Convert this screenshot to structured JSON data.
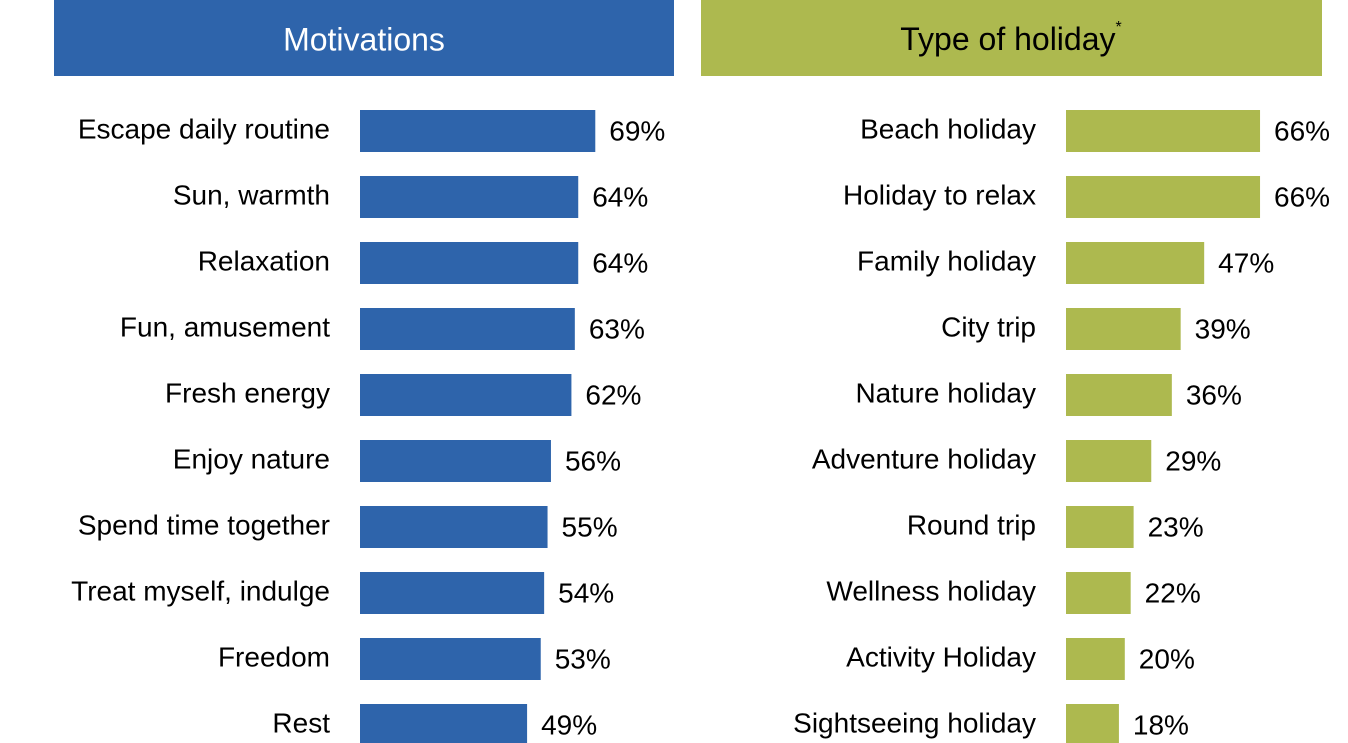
{
  "chart_data": [
    {
      "type": "bar",
      "orientation": "horizontal",
      "title": "Motivations",
      "color": "#2e64ab",
      "categories": [
        "Escape daily routine",
        "Sun, warmth",
        "Relaxation",
        "Fun, amusement",
        "Fresh energy",
        "Enjoy nature",
        "Spend time together",
        "Treat myself, indulge",
        "Freedom",
        "Rest"
      ],
      "values": [
        69,
        64,
        64,
        63,
        62,
        56,
        55,
        54,
        53,
        49
      ],
      "value_labels": [
        "69%",
        "64%",
        "64%",
        "63%",
        "62%",
        "56%",
        "55%",
        "54%",
        "53%",
        "49%"
      ]
    },
    {
      "type": "bar",
      "orientation": "horizontal",
      "title": "Type of holiday",
      "title_note": "*",
      "color": "#adb94f",
      "categories": [
        "Beach holiday",
        "Holiday to relax",
        "Family holiday",
        "City trip",
        "Nature holiday",
        "Adventure holiday",
        "Round trip",
        "Wellness holiday",
        "Activity Holiday",
        "Sightseeing holiday"
      ],
      "values": [
        66,
        66,
        47,
        39,
        36,
        29,
        23,
        22,
        20,
        18
      ],
      "value_labels": [
        "66%",
        "66%",
        "47%",
        "39%",
        "36%",
        "29%",
        "23%",
        "22%",
        "20%",
        "18%"
      ]
    }
  ]
}
